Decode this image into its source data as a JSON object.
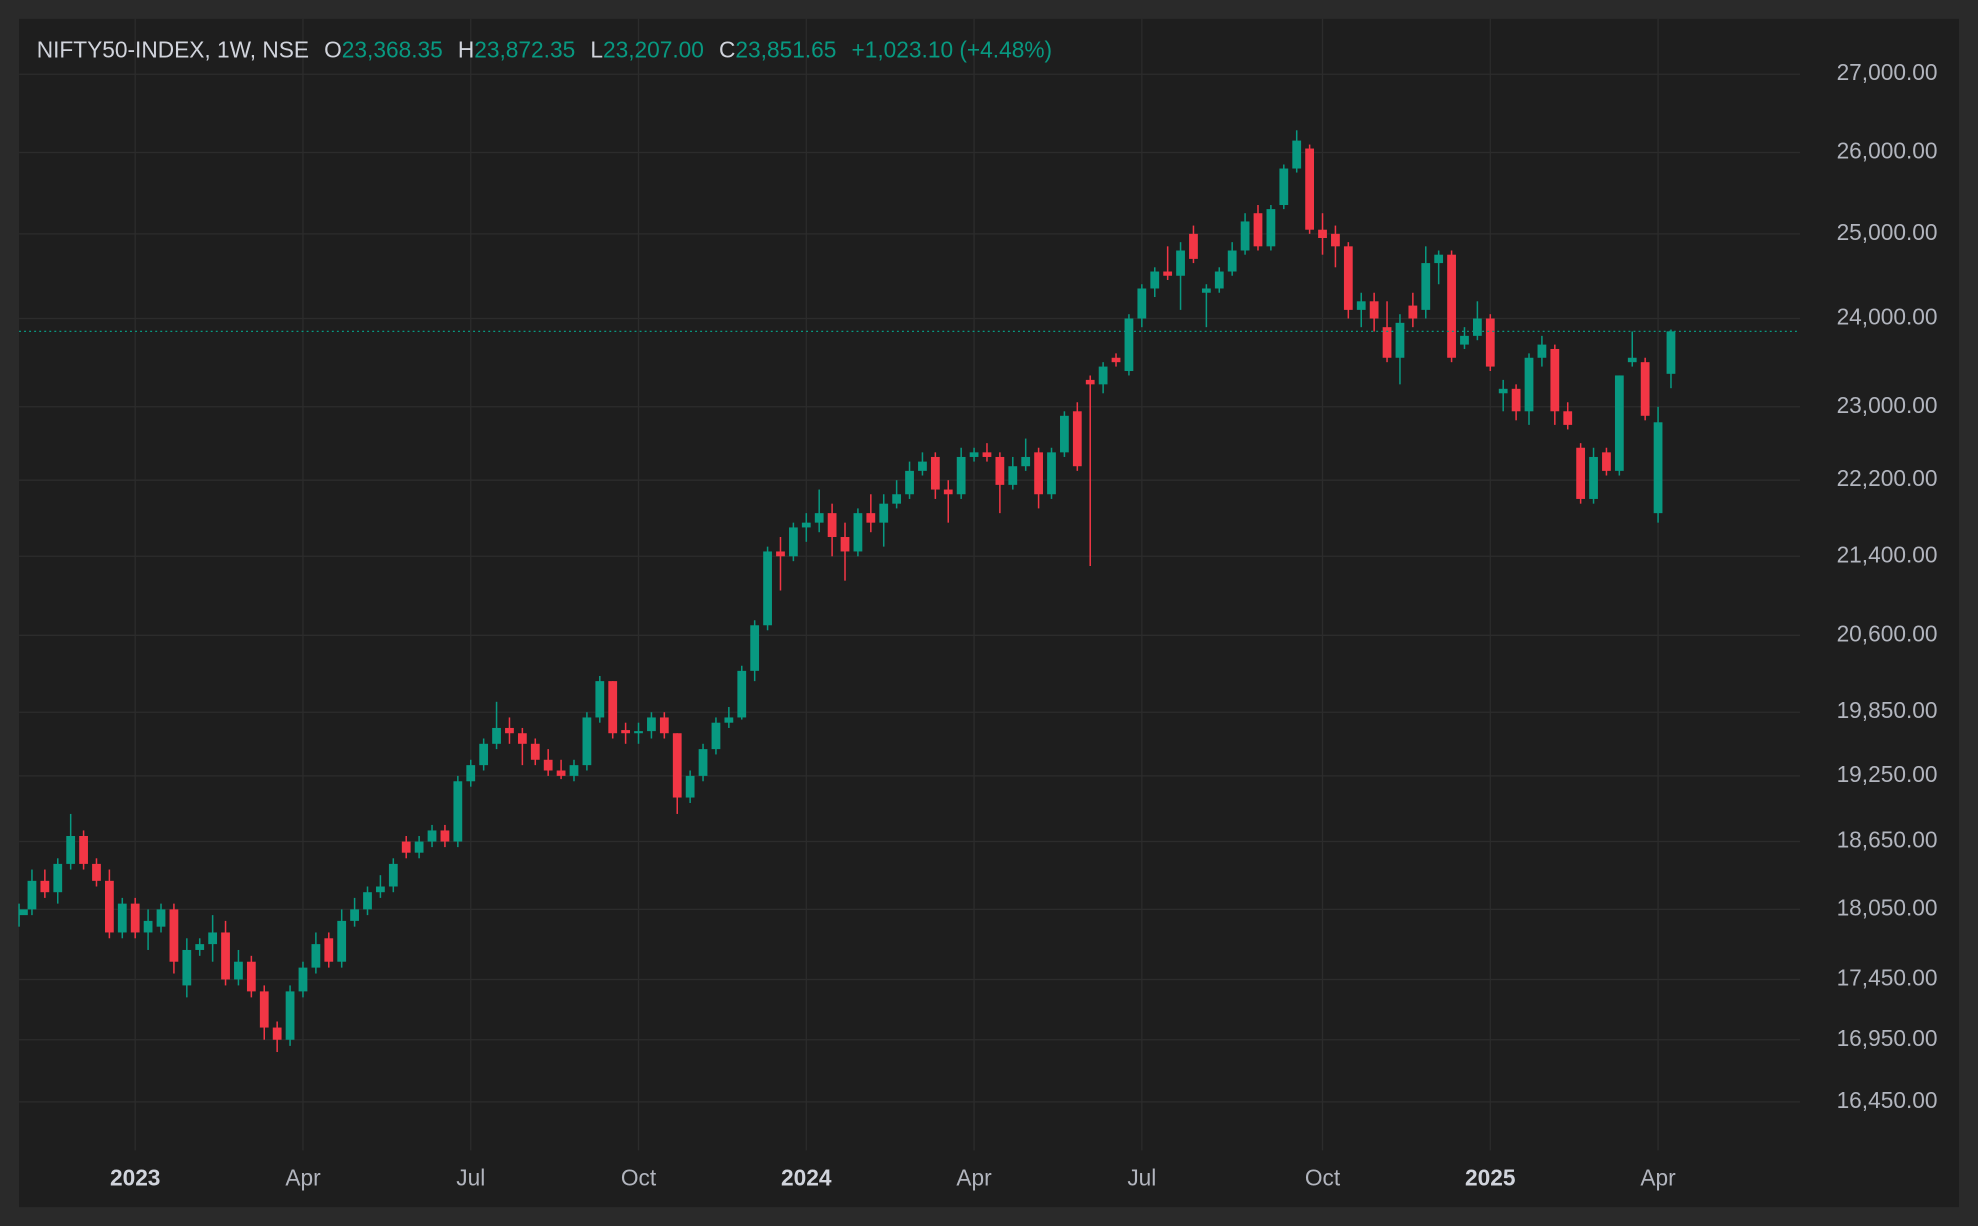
{
  "chart_data": {
    "type": "candlestick",
    "title": "NIFTY50-INDEX, 1W, NSE",
    "ohlc_legend": [
      {
        "key": "O",
        "value": "23,368.35"
      },
      {
        "key": "H",
        "value": "23,872.35"
      },
      {
        "key": "L",
        "value": "23,207.00"
      },
      {
        "key": "C",
        "value": "23,851.65"
      }
    ],
    "change_label": "+1,023.10 (+4.48%)",
    "up_color": "#089981",
    "down_color": "#f23645",
    "log_scale": true,
    "grid": true,
    "ylim": [
      16070,
      27730
    ],
    "yticks": [
      {
        "value": 16450,
        "label": "16,450.00"
      },
      {
        "value": 16950,
        "label": "16,950.00"
      },
      {
        "value": 17450,
        "label": "17,450.00"
      },
      {
        "value": 18050,
        "label": "18,050.00"
      },
      {
        "value": 18650,
        "label": "18,650.00"
      },
      {
        "value": 19250,
        "label": "19,250.00"
      },
      {
        "value": 19850,
        "label": "19,850.00"
      },
      {
        "value": 20600,
        "label": "20,600.00"
      },
      {
        "value": 21400,
        "label": "21,400.00"
      },
      {
        "value": 22200,
        "label": "22,200.00"
      },
      {
        "value": 23000,
        "label": "23,000.00"
      },
      {
        "value": 24000,
        "label": "24,000.00"
      },
      {
        "value": 25000,
        "label": "25,000.00"
      },
      {
        "value": 26000,
        "label": "26,000.00"
      },
      {
        "value": 27000,
        "label": "27,000.00"
      }
    ],
    "xlim": [
      0,
      138
    ],
    "xticks": [
      {
        "value": 9,
        "label": "2023",
        "major": true
      },
      {
        "value": 22,
        "label": "Apr"
      },
      {
        "value": 35,
        "label": "Jul"
      },
      {
        "value": 48,
        "label": "Oct"
      },
      {
        "value": 61,
        "label": "2024",
        "major": true
      },
      {
        "value": 74,
        "label": "Apr"
      },
      {
        "value": 87,
        "label": "Jul"
      },
      {
        "value": 101,
        "label": "Oct"
      },
      {
        "value": 114,
        "label": "2025",
        "major": true
      },
      {
        "value": 127,
        "label": "Apr"
      }
    ],
    "ohlc": [
      [
        18000,
        18100,
        17900,
        18050
      ],
      [
        18050,
        18400,
        18000,
        18300
      ],
      [
        18300,
        18400,
        18150,
        18200
      ],
      [
        18200,
        18500,
        18100,
        18450
      ],
      [
        18450,
        18900,
        18400,
        18700
      ],
      [
        18700,
        18750,
        18400,
        18450
      ],
      [
        18450,
        18500,
        18250,
        18300
      ],
      [
        18300,
        18400,
        17800,
        17850
      ],
      [
        17850,
        18150,
        17800,
        18100
      ],
      [
        18100,
        18150,
        17800,
        17850
      ],
      [
        17850,
        18050,
        17700,
        17950
      ],
      [
        17900,
        18100,
        17850,
        18050
      ],
      [
        18050,
        18100,
        17500,
        17600
      ],
      [
        17400,
        17800,
        17300,
        17700
      ],
      [
        17700,
        17800,
        17650,
        17750
      ],
      [
        17750,
        18000,
        17600,
        17850
      ],
      [
        17850,
        17950,
        17400,
        17450
      ],
      [
        17450,
        17700,
        17400,
        17600
      ],
      [
        17600,
        17650,
        17300,
        17350
      ],
      [
        17350,
        17400,
        16950,
        17050
      ],
      [
        17050,
        17100,
        16850,
        16950
      ],
      [
        16950,
        17400,
        16900,
        17350
      ],
      [
        17350,
        17600,
        17300,
        17550
      ],
      [
        17550,
        17850,
        17500,
        17750
      ],
      [
        17800,
        17850,
        17550,
        17600
      ],
      [
        17600,
        18050,
        17550,
        17950
      ],
      [
        17950,
        18150,
        17900,
        18050
      ],
      [
        18050,
        18250,
        18000,
        18200
      ],
      [
        18200,
        18350,
        18150,
        18250
      ],
      [
        18250,
        18500,
        18200,
        18450
      ],
      [
        18650,
        18700,
        18500,
        18550
      ],
      [
        18550,
        18700,
        18500,
        18650
      ],
      [
        18650,
        18800,
        18600,
        18750
      ],
      [
        18750,
        18800,
        18600,
        18650
      ],
      [
        18650,
        19250,
        18600,
        19200
      ],
      [
        19200,
        19400,
        19150,
        19350
      ],
      [
        19350,
        19600,
        19300,
        19550
      ],
      [
        19550,
        19950,
        19500,
        19700
      ],
      [
        19700,
        19800,
        19550,
        19650
      ],
      [
        19650,
        19700,
        19350,
        19550
      ],
      [
        19550,
        19600,
        19350,
        19400
      ],
      [
        19400,
        19500,
        19250,
        19300
      ],
      [
        19300,
        19400,
        19220,
        19250
      ],
      [
        19250,
        19400,
        19200,
        19350
      ],
      [
        19350,
        19850,
        19300,
        19800
      ],
      [
        19800,
        20200,
        19750,
        20150
      ],
      [
        20150,
        20150,
        19600,
        19650
      ],
      [
        19680,
        19750,
        19550,
        19650
      ],
      [
        19650,
        19750,
        19550,
        19670
      ],
      [
        19670,
        19850,
        19600,
        19800
      ],
      [
        19800,
        19850,
        19600,
        19650
      ],
      [
        19650,
        19650,
        18900,
        19050
      ],
      [
        19050,
        19300,
        19000,
        19250
      ],
      [
        19250,
        19550,
        19200,
        19500
      ],
      [
        19500,
        19800,
        19450,
        19750
      ],
      [
        19750,
        19900,
        19700,
        19800
      ],
      [
        19800,
        20300,
        19780,
        20250
      ],
      [
        20250,
        20750,
        20150,
        20700
      ],
      [
        20700,
        21500,
        20650,
        21450
      ],
      [
        21450,
        21600,
        21050,
        21400
      ],
      [
        21400,
        21750,
        21350,
        21700
      ],
      [
        21700,
        21850,
        21550,
        21750
      ],
      [
        21750,
        22100,
        21650,
        21850
      ],
      [
        21850,
        21950,
        21400,
        21600
      ],
      [
        21600,
        21750,
        21150,
        21450
      ],
      [
        21450,
        21900,
        21400,
        21850
      ],
      [
        21850,
        22050,
        21650,
        21750
      ],
      [
        21750,
        22050,
        21500,
        21950
      ],
      [
        21950,
        22200,
        21900,
        22050
      ],
      [
        22050,
        22400,
        22000,
        22300
      ],
      [
        22300,
        22500,
        22250,
        22400
      ],
      [
        22450,
        22500,
        22000,
        22100
      ],
      [
        22100,
        22200,
        21750,
        22050
      ],
      [
        22050,
        22550,
        22000,
        22450
      ],
      [
        22450,
        22550,
        22400,
        22500
      ],
      [
        22500,
        22600,
        22400,
        22450
      ],
      [
        22450,
        22500,
        21850,
        22150
      ],
      [
        22150,
        22450,
        22100,
        22350
      ],
      [
        22350,
        22650,
        22300,
        22450
      ],
      [
        22500,
        22550,
        21900,
        22050
      ],
      [
        22050,
        22550,
        22000,
        22500
      ],
      [
        22500,
        22950,
        22450,
        22900
      ],
      [
        22950,
        23050,
        22300,
        22350
      ],
      [
        23300,
        23350,
        21300,
        23250
      ],
      [
        23250,
        23500,
        23150,
        23450
      ],
      [
        23550,
        23600,
        23450,
        23500
      ],
      [
        23400,
        24050,
        23350,
        24000
      ],
      [
        24000,
        24400,
        23900,
        24350
      ],
      [
        24350,
        24600,
        24250,
        24550
      ],
      [
        24550,
        24850,
        24450,
        24500
      ],
      [
        24500,
        24900,
        24100,
        24800
      ],
      [
        25000,
        25100,
        24650,
        24700
      ],
      [
        24300,
        24400,
        23900,
        24350
      ],
      [
        24350,
        24600,
        24300,
        24550
      ],
      [
        24550,
        24900,
        24500,
        24800
      ],
      [
        24800,
        25250,
        24750,
        25150
      ],
      [
        25250,
        25350,
        24800,
        24850
      ],
      [
        24850,
        25350,
        24800,
        25300
      ],
      [
        25350,
        25850,
        25300,
        25800
      ],
      [
        25800,
        26280,
        25750,
        26150
      ],
      [
        26050,
        26100,
        25000,
        25050
      ],
      [
        25050,
        25250,
        24750,
        24950
      ],
      [
        25000,
        25100,
        24600,
        24850
      ],
      [
        24850,
        24900,
        24000,
        24100
      ],
      [
        24100,
        24300,
        23900,
        24200
      ],
      [
        24200,
        24300,
        23850,
        24000
      ],
      [
        23900,
        24200,
        23500,
        23550
      ],
      [
        23550,
        24050,
        23250,
        23950
      ],
      [
        24150,
        24300,
        23900,
        24000
      ],
      [
        24100,
        24850,
        24000,
        24650
      ],
      [
        24650,
        24800,
        24400,
        24750
      ],
      [
        24750,
        24800,
        23500,
        23550
      ],
      [
        23700,
        23900,
        23650,
        23800
      ],
      [
        23800,
        24200,
        23750,
        24000
      ],
      [
        24000,
        24050,
        23400,
        23450
      ],
      [
        23150,
        23300,
        22950,
        23200
      ],
      [
        23200,
        23250,
        22850,
        22950
      ],
      [
        22950,
        23600,
        22800,
        23550
      ],
      [
        23550,
        23800,
        23450,
        23700
      ],
      [
        23650,
        23700,
        22800,
        22950
      ],
      [
        22950,
        23050,
        22750,
        22800
      ],
      [
        22550,
        22600,
        21950,
        22000
      ],
      [
        22000,
        22550,
        21950,
        22450
      ],
      [
        22500,
        22550,
        22250,
        22300
      ],
      [
        22300,
        23350,
        22250,
        23350
      ],
      [
        23500,
        23850,
        23450,
        23550
      ],
      [
        23500,
        23550,
        22850,
        22900
      ],
      [
        21850,
        23000,
        21750,
        22828.55
      ],
      [
        23368.35,
        23872.35,
        23207,
        23851.65
      ]
    ]
  }
}
